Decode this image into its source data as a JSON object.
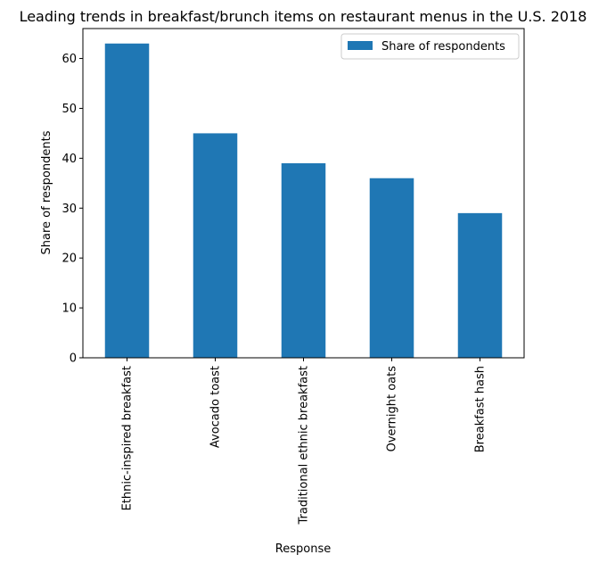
{
  "chart_data": {
    "type": "bar",
    "title": "Leading trends in breakfast/brunch items on restaurant menus in the U.S. 2018",
    "xlabel": "Response",
    "ylabel": "Share of respondents",
    "categories": [
      "Ethnic-inspired breakfast",
      "Avocado toast",
      "Traditional ethnic breakfast",
      "Overnight oats",
      "Breakfast hash"
    ],
    "series": [
      {
        "name": "Share of respondents",
        "values": [
          63,
          45,
          39,
          36,
          29
        ],
        "color": "#1f77b4"
      }
    ],
    "ylim": [
      0,
      66
    ],
    "yticks": [
      0,
      10,
      20,
      30,
      40,
      50,
      60
    ],
    "grid": false,
    "legend_position": "top-right"
  }
}
